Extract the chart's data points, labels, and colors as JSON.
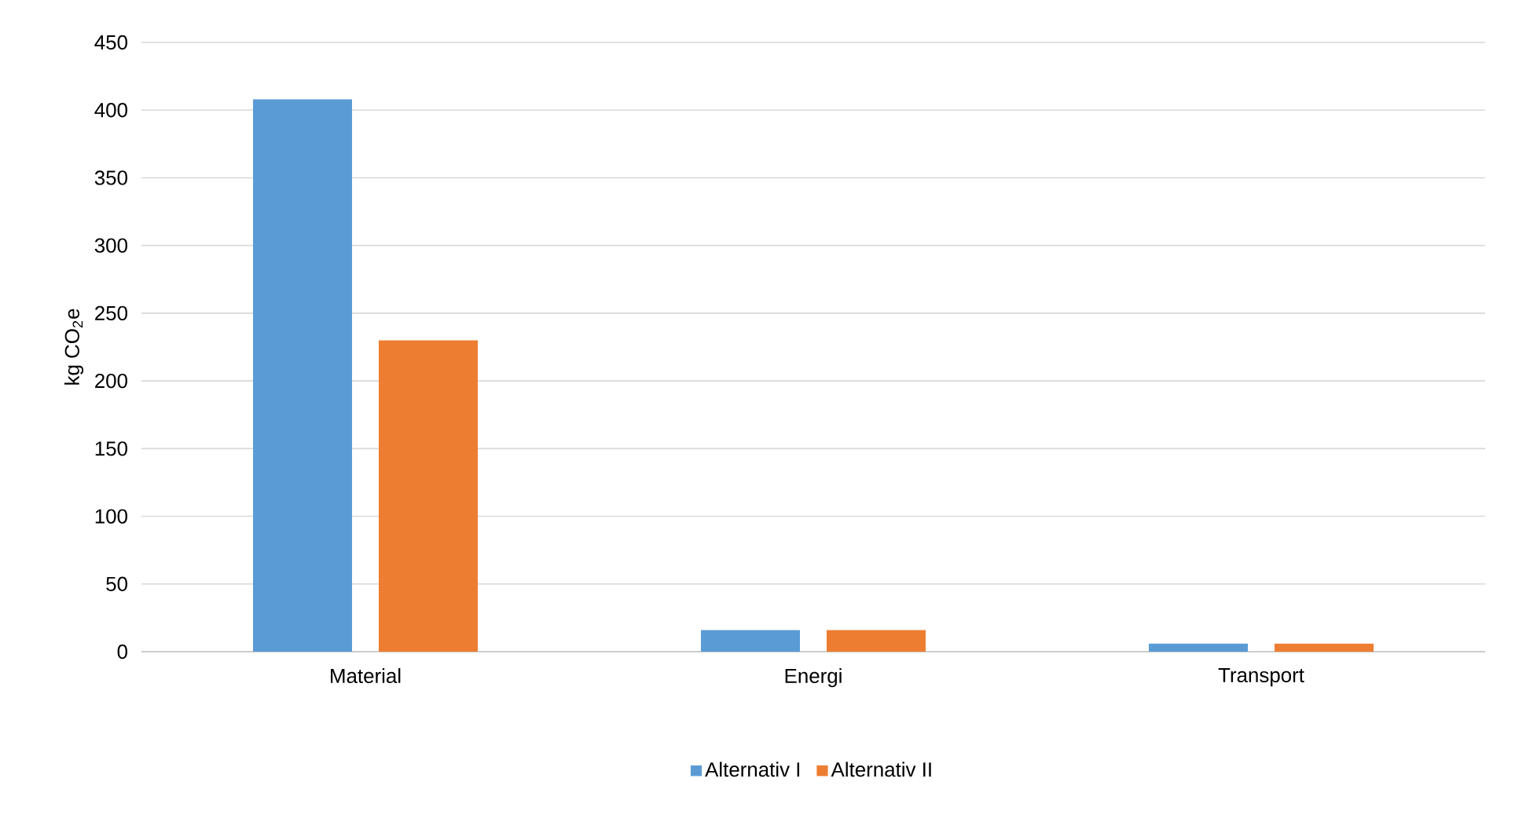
{
  "chart_data": {
    "type": "bar",
    "ylabel": "kg CO$_{2}$e",
    "categories": [
      "Material",
      "Energi",
      "Transport"
    ],
    "series": [
      {
        "name": "Alternativ I",
        "color": "#5b9bd5",
        "values": [
          408,
          16,
          6
        ]
      },
      {
        "name": "Alternativ II",
        "color": "#ed7d31",
        "values": [
          230,
          16,
          6
        ]
      }
    ],
    "ylim": [
      0,
      450
    ],
    "yticks": [
      0,
      50,
      100,
      150,
      200,
      250,
      300,
      350,
      400,
      450
    ],
    "grid": "y",
    "legend": "bottom"
  }
}
